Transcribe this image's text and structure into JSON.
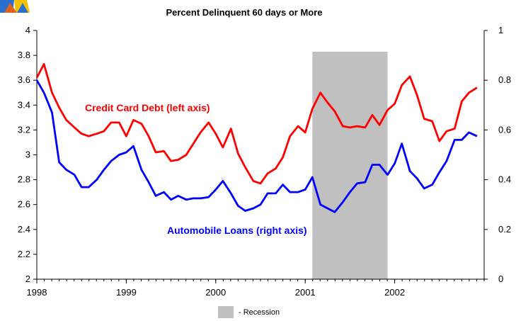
{
  "chart_data": {
    "type": "line",
    "title": "Percent Delinquent 60 days or More",
    "x_ticks": [
      "1998",
      "1999",
      "2000",
      "2001",
      "2002"
    ],
    "left_axis": {
      "ylim": [
        2,
        4
      ],
      "ticks": [
        "2",
        "2.2",
        "2.4",
        "2.6",
        "2.8",
        "3",
        "3.2",
        "3.4",
        "3.6",
        "3.8",
        "4"
      ]
    },
    "right_axis": {
      "ylim": [
        0,
        1
      ],
      "ticks": [
        "0",
        "0.2",
        "0.4",
        "0.6",
        "0.8",
        "1"
      ]
    },
    "recession": {
      "start": 2001.08,
      "end": 2001.92,
      "legend_label": "- Recession",
      "color": "#c0c0c0"
    },
    "series": [
      {
        "name": "Credit Card Debt (left axis)",
        "axis": "left",
        "color": "#ff0000",
        "x": [
          1998.0,
          1998.08,
          1998.17,
          1998.25,
          1998.33,
          1998.42,
          1998.5,
          1998.58,
          1998.67,
          1998.75,
          1998.83,
          1998.92,
          1999.0,
          1999.08,
          1999.17,
          1999.25,
          1999.33,
          1999.42,
          1999.5,
          1999.58,
          1999.67,
          1999.75,
          1999.83,
          1999.92,
          2000.0,
          2000.08,
          2000.17,
          2000.25,
          2000.33,
          2000.42,
          2000.5,
          2000.58,
          2000.67,
          2000.75,
          2000.83,
          2000.92,
          2001.0,
          2001.08,
          2001.17,
          2001.25,
          2001.33,
          2001.42,
          2001.5,
          2001.58,
          2001.67,
          2001.75,
          2001.83,
          2001.92,
          2002.0,
          2002.08,
          2002.17,
          2002.25,
          2002.33,
          2002.42,
          2002.5,
          2002.58,
          2002.67,
          2002.75,
          2002.83,
          2002.92
        ],
        "y": [
          3.62,
          3.73,
          3.5,
          3.38,
          3.28,
          3.22,
          3.17,
          3.15,
          3.17,
          3.19,
          3.26,
          3.26,
          3.15,
          3.28,
          3.25,
          3.15,
          3.02,
          3.03,
          2.95,
          2.96,
          3.0,
          3.09,
          3.18,
          3.26,
          3.17,
          3.06,
          3.21,
          3.01,
          2.9,
          2.79,
          2.77,
          2.85,
          2.89,
          2.98,
          3.15,
          3.23,
          3.18,
          3.37,
          3.5,
          3.42,
          3.35,
          3.23,
          3.22,
          3.23,
          3.22,
          3.32,
          3.24,
          3.36,
          3.41,
          3.56,
          3.63,
          3.48,
          3.29,
          3.27,
          3.11,
          3.19,
          3.21,
          3.43,
          3.5,
          3.54
        ]
      },
      {
        "name": "Automobile Loans (right axis)",
        "axis": "right",
        "color": "#0000ff",
        "x": [
          1998.0,
          1998.08,
          1998.17,
          1998.25,
          1998.33,
          1998.42,
          1998.5,
          1998.58,
          1998.67,
          1998.75,
          1998.83,
          1998.92,
          1999.0,
          1999.08,
          1999.17,
          1999.25,
          1999.33,
          1999.42,
          1999.5,
          1999.58,
          1999.67,
          1999.75,
          1999.83,
          1999.92,
          2000.0,
          2000.08,
          2000.17,
          2000.25,
          2000.33,
          2000.42,
          2000.5,
          2000.58,
          2000.67,
          2000.75,
          2000.83,
          2000.92,
          2001.0,
          2001.08,
          2001.17,
          2001.25,
          2001.33,
          2001.42,
          2001.5,
          2001.58,
          2001.67,
          2001.75,
          2001.83,
          2001.92,
          2002.0,
          2002.08,
          2002.17,
          2002.25,
          2002.33,
          2002.42,
          2002.5,
          2002.58,
          2002.67,
          2002.75,
          2002.83,
          2002.92
        ],
        "y": [
          0.8,
          0.75,
          0.67,
          0.47,
          0.44,
          0.42,
          0.37,
          0.37,
          0.4,
          0.44,
          0.475,
          0.5,
          0.51,
          0.535,
          0.44,
          0.39,
          0.335,
          0.35,
          0.32,
          0.335,
          0.32,
          0.325,
          0.325,
          0.33,
          0.36,
          0.395,
          0.345,
          0.295,
          0.275,
          0.285,
          0.3,
          0.345,
          0.345,
          0.38,
          0.35,
          0.35,
          0.36,
          0.41,
          0.3,
          0.285,
          0.27,
          0.31,
          0.35,
          0.385,
          0.39,
          0.46,
          0.46,
          0.42,
          0.465,
          0.545,
          0.435,
          0.405,
          0.365,
          0.38,
          0.43,
          0.475,
          0.56,
          0.56,
          0.59,
          0.575
        ]
      }
    ],
    "annotations": [
      {
        "text": "Credit Card Debt (left axis)",
        "color": "#ff0000"
      },
      {
        "text": "Automobile Loans (right axis)",
        "color": "#0000ff"
      }
    ],
    "logo_colors": [
      "#2a6fd0",
      "#f2c200",
      "#e06020"
    ]
  }
}
